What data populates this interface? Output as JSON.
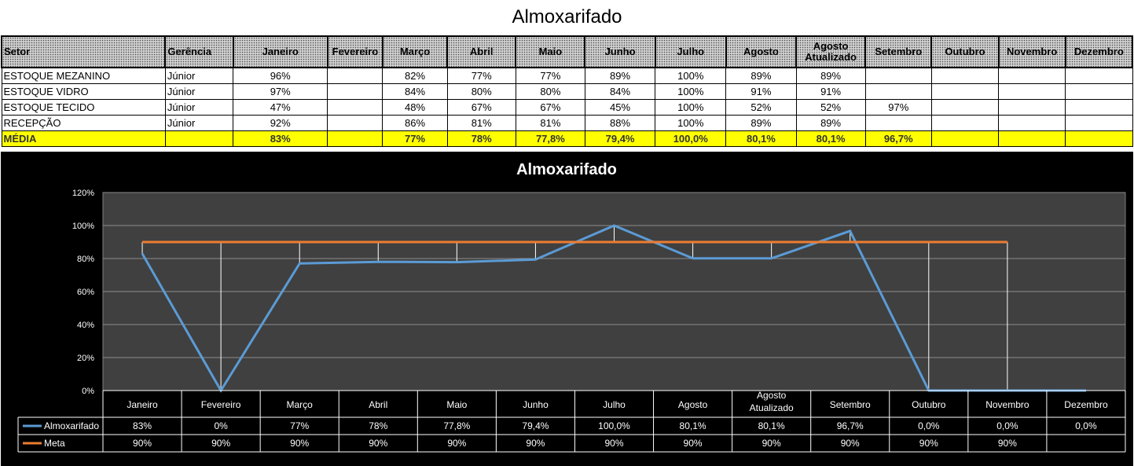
{
  "page": {
    "title": "Almoxarifado"
  },
  "table": {
    "headers": [
      "Setor",
      "Gerência",
      "Janeiro",
      "Fevereiro",
      "Março",
      "Abril",
      "Maio",
      "Junho",
      "Julho",
      "Agosto",
      "Agosto Atualizado",
      "Setembro",
      "Outubro",
      "Novembro",
      "Dezembro"
    ],
    "rows": [
      [
        "ESTOQUE MEZANINO",
        "Júnior",
        "96%",
        "",
        "82%",
        "77%",
        "77%",
        "89%",
        "100%",
        "89%",
        "89%",
        "",
        "",
        "",
        ""
      ],
      [
        "ESTOQUE VIDRO",
        "Júnior",
        "97%",
        "",
        "84%",
        "80%",
        "80%",
        "84%",
        "100%",
        "91%",
        "91%",
        "",
        "",
        "",
        ""
      ],
      [
        "ESTOQUE TECIDO",
        "Júnior",
        "47%",
        "",
        "48%",
        "67%",
        "67%",
        "45%",
        "100%",
        "52%",
        "52%",
        "97%",
        "",
        "",
        ""
      ],
      [
        "RECEPÇÃO",
        "Júnior",
        "92%",
        "",
        "86%",
        "81%",
        "81%",
        "88%",
        "100%",
        "89%",
        "89%",
        "",
        "",
        "",
        ""
      ]
    ],
    "average_row": [
      "MÉDIA",
      "",
      "83%",
      "",
      "77%",
      "78%",
      "77,8%",
      "79,4%",
      "100,0%",
      "80,1%",
      "80,1%",
      "96,7%",
      "",
      "",
      ""
    ],
    "highlight_color": "#ffff00"
  },
  "chart_data": {
    "type": "line",
    "title": "Almoxarifado",
    "categories": [
      "Janeiro",
      "Fevereiro",
      "Março",
      "Abril",
      "Maio",
      "Junho",
      "Julho",
      "Agosto",
      "Agosto Atualizado",
      "Setembro",
      "Outubro",
      "Novembro",
      "Dezembro"
    ],
    "yticks": [
      "0%",
      "20%",
      "40%",
      "60%",
      "80%",
      "100%",
      "120%"
    ],
    "ylim": [
      0,
      120
    ],
    "grid": true,
    "legend": "data-table-left",
    "series": [
      {
        "name": "Almoxarifado",
        "color": "#5b9bd5",
        "values": [
          83,
          0,
          77,
          78,
          77.8,
          79.4,
          100,
          80.1,
          80.1,
          96.7,
          0,
          0,
          0
        ],
        "labels": [
          "83%",
          "0%",
          "77%",
          "78%",
          "77,8%",
          "79,4%",
          "100,0%",
          "80,1%",
          "80,1%",
          "96,7%",
          "0,0%",
          "0,0%",
          "0,0%"
        ]
      },
      {
        "name": "Meta",
        "color": "#ed7d31",
        "values": [
          90,
          90,
          90,
          90,
          90,
          90,
          90,
          90,
          90,
          90,
          90,
          90,
          null
        ],
        "labels": [
          "90%",
          "90%",
          "90%",
          "90%",
          "90%",
          "90%",
          "90%",
          "90%",
          "90%",
          "90%",
          "90%",
          "90%",
          ""
        ]
      }
    ]
  }
}
